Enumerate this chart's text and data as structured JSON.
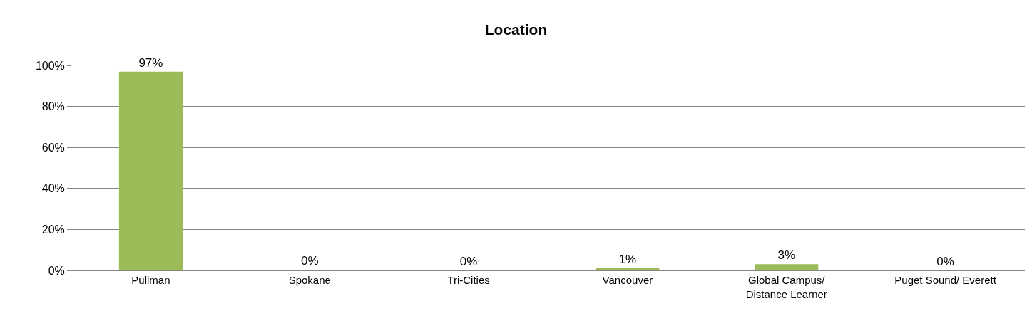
{
  "chart_data": {
    "type": "bar",
    "title": "Location",
    "categories": [
      "Pullman",
      "Spokane",
      "Tri-Cities",
      "Vancouver",
      "Global Campus/ Distance Learner",
      "Puget Sound/ Everett"
    ],
    "values": [
      97,
      0.3,
      0,
      1,
      3,
      0
    ],
    "value_labels": [
      "97%",
      "0%",
      "0%",
      "1%",
      "3%",
      "0%"
    ],
    "color": "#9bbb59",
    "ylim": [
      0,
      100
    ],
    "yticks": [
      {
        "value": 0,
        "label": "0%"
      },
      {
        "value": 20,
        "label": "20%"
      },
      {
        "value": 40,
        "label": "40%"
      },
      {
        "value": 60,
        "label": "60%"
      },
      {
        "value": 80,
        "label": "80%"
      },
      {
        "value": 100,
        "label": "100%"
      }
    ],
    "grid": "y"
  }
}
